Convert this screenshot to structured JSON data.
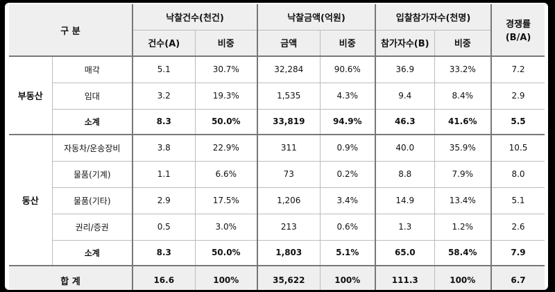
{
  "header": {
    "category": "구 분",
    "groups": {
      "bid_count": "낙찰건수(천건)",
      "bid_amount": "낙찰금액(억원)",
      "participants": "입찰참가자수(천명)",
      "competition": "경쟁률",
      "competition_sub": "(B/A)"
    },
    "sub": {
      "count": "건수(A)",
      "count_share": "비중",
      "amount": "금액",
      "amount_share": "비중",
      "participants": "참가자수(B)",
      "participants_share": "비중"
    }
  },
  "real_estate": {
    "label": "부동산",
    "rows": [
      {
        "label": "매각",
        "count": "5.1",
        "count_share": "30.7%",
        "amount": "32,284",
        "amount_share": "90.6%",
        "participants": "36.9",
        "participants_share": "33.2%",
        "competition": "7.2"
      },
      {
        "label": "임대",
        "count": "3.2",
        "count_share": "19.3%",
        "amount": "1,535",
        "amount_share": "4.3%",
        "participants": "9.4",
        "participants_share": "8.4%",
        "competition": "2.9"
      }
    ],
    "subtotal": {
      "label": "소계",
      "count": "8.3",
      "count_share": "50.0%",
      "amount": "33,819",
      "amount_share": "94.9%",
      "participants": "46.3",
      "participants_share": "41.6%",
      "competition": "5.5"
    }
  },
  "movable": {
    "label": "동산",
    "rows": [
      {
        "label": "자동차/운송장비",
        "count": "3.8",
        "count_share": "22.9%",
        "amount": "311",
        "amount_share": "0.9%",
        "participants": "40.0",
        "participants_share": "35.9%",
        "competition": "10.5"
      },
      {
        "label": "물품(기계)",
        "count": "1.1",
        "count_share": "6.6%",
        "amount": "73",
        "amount_share": "0.2%",
        "participants": "8.8",
        "participants_share": "7.9%",
        "competition": "8.0"
      },
      {
        "label": "물품(기타)",
        "count": "2.9",
        "count_share": "17.5%",
        "amount": "1,206",
        "amount_share": "3.4%",
        "participants": "14.9",
        "participants_share": "13.4%",
        "competition": "5.1"
      },
      {
        "label": "권리/증권",
        "count": "0.5",
        "count_share": "3.0%",
        "amount": "213",
        "amount_share": "0.6%",
        "participants": "1.3",
        "participants_share": "1.2%",
        "competition": "2.6"
      }
    ],
    "subtotal": {
      "label": "소계",
      "count": "8.3",
      "count_share": "50.0%",
      "amount": "1,803",
      "amount_share": "5.1%",
      "participants": "65.0",
      "participants_share": "58.4%",
      "competition": "7.9"
    }
  },
  "total": {
    "label": "합 계",
    "count": "16.6",
    "count_share": "100%",
    "amount": "35,622",
    "amount_share": "100%",
    "participants": "111.3",
    "participants_share": "100%",
    "competition": "6.7"
  }
}
